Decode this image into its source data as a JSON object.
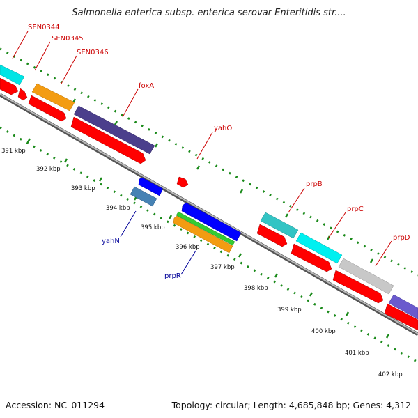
{
  "title": "Salmonella enterica subsp. enterica serovar Enteritidis str....",
  "footer": {
    "accession": "Accession: NC_011294",
    "topology": "Topology: circular; Length: 4,685,848 bp; Genes: 4,312"
  },
  "scale_labels": [
    "391 kbp",
    "392 kbp",
    "393 kbp",
    "394 kbp",
    "395 kbp",
    "396 kbp",
    "397 kbp",
    "398 kbp",
    "399 kbp",
    "400 kbp",
    "401 kbp",
    "402 kbp"
  ],
  "gene_labels": [
    "SEN0344",
    "SEN0345",
    "SEN0346",
    "foxA",
    "yahO",
    "prpB",
    "prpC",
    "prpD",
    "yahN",
    "prpR"
  ],
  "colors": {
    "forward_label": "#cc0000",
    "reverse_label": "#000099",
    "cds": "#ff0000",
    "backbone": "#888888",
    "ticks": "#1a8a1a"
  }
}
